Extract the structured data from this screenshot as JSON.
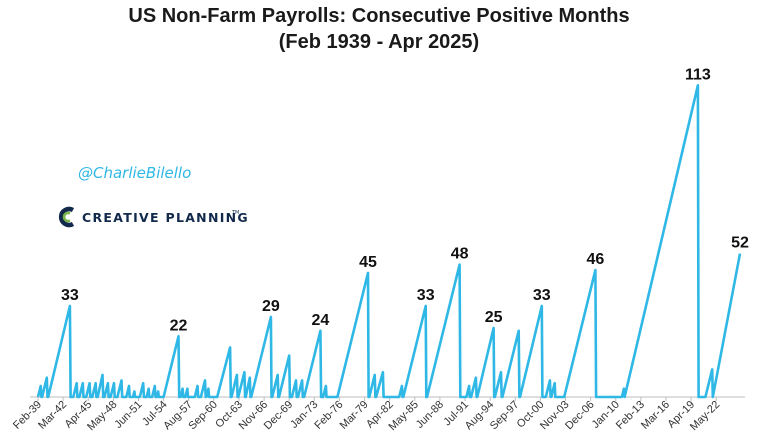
{
  "colors": {
    "series": "#2fb8e6",
    "handle": "#2fb8e6",
    "brand_navy": "#13294b",
    "brand_green": "#7ab648",
    "axis": "#bdbdbd",
    "title": "#1a1a1a"
  },
  "watermark": {
    "handle": "@CharlieBilello",
    "brand": "CREATIVE PLANNING",
    "brand_mark": "TM",
    "logo_icon": "creative-planning-c-logo-icon"
  },
  "chart_data": {
    "type": "line",
    "title": "US Non-Farm Payrolls: Consecutive Positive Months",
    "subtitle": "(Feb 1939 - Apr 2025)",
    "xlabel": "",
    "ylabel": "",
    "x_range": [
      "Feb-39",
      "Apr-25"
    ],
    "ylim": [
      0,
      120
    ],
    "grid": false,
    "legend": "none",
    "x_tick_labels": [
      "Feb-39",
      "Mar-42",
      "Apr-45",
      "May-48",
      "Jun-51",
      "Jul-54",
      "Aug-57",
      "Sep-60",
      "Oct-63",
      "Nov-66",
      "Dec-69",
      "Jan-73",
      "Feb-76",
      "Mar-79",
      "Apr-82",
      "May-85",
      "Jun-88",
      "Jul-91",
      "Aug-94",
      "Sep-97",
      "Oct-00",
      "Nov-03",
      "Dec-06",
      "Jan-10",
      "Feb-13",
      "Mar-16",
      "Apr-19",
      "May-22"
    ],
    "series": [
      {
        "values": [
          {
            "x": "Feb-39",
            "y": 0
          },
          {
            "x": "Jun-39",
            "y": 4
          },
          {
            "x": "Jul-39",
            "y": 0
          },
          {
            "x": "Aug-39",
            "y": 0
          },
          {
            "x": "Mar-40",
            "y": 7
          },
          {
            "x": "Apr-40",
            "y": 0
          },
          {
            "x": "May-40",
            "y": 0
          },
          {
            "x": "Jan-43",
            "y": 33
          },
          {
            "x": "Feb-43",
            "y": 0
          },
          {
            "x": "Jun-43",
            "y": 0
          },
          {
            "x": "Nov-43",
            "y": 5
          },
          {
            "x": "Dec-43",
            "y": 0
          },
          {
            "x": "Mar-44",
            "y": 0
          },
          {
            "x": "Aug-44",
            "y": 5
          },
          {
            "x": "Sep-44",
            "y": 0
          },
          {
            "x": "Jan-45",
            "y": 0
          },
          {
            "x": "Jun-45",
            "y": 5
          },
          {
            "x": "Jul-45",
            "y": 0
          },
          {
            "x": "Oct-45",
            "y": 0
          },
          {
            "x": "Mar-46",
            "y": 5
          },
          {
            "x": "Apr-46",
            "y": 0
          },
          {
            "x": "Jun-46",
            "y": 0
          },
          {
            "x": "Jan-47",
            "y": 8
          },
          {
            "x": "Feb-47",
            "y": 0
          },
          {
            "x": "Apr-47",
            "y": 0
          },
          {
            "x": "Sep-47",
            "y": 5
          },
          {
            "x": "Oct-47",
            "y": 0
          },
          {
            "x": "Jan-48",
            "y": 0
          },
          {
            "x": "Jun-48",
            "y": 5
          },
          {
            "x": "Jul-48",
            "y": 0
          },
          {
            "x": "Nov-48",
            "y": 0
          },
          {
            "x": "May-49",
            "y": 6
          },
          {
            "x": "Jun-49",
            "y": 0
          },
          {
            "x": "Dec-49",
            "y": 0
          },
          {
            "x": "Apr-50",
            "y": 4
          },
          {
            "x": "May-50",
            "y": 0
          },
          {
            "x": "Oct-50",
            "y": 0
          },
          {
            "x": "Dec-50",
            "y": 2
          },
          {
            "x": "Jan-51",
            "y": 0
          },
          {
            "x": "Aug-51",
            "y": 0
          },
          {
            "x": "Jan-52",
            "y": 5
          },
          {
            "x": "Feb-52",
            "y": 0
          },
          {
            "x": "Jun-52",
            "y": 0
          },
          {
            "x": "Sep-52",
            "y": 3
          },
          {
            "x": "Oct-52",
            "y": 0
          },
          {
            "x": "Feb-53",
            "y": 0
          },
          {
            "x": "Jun-53",
            "y": 4
          },
          {
            "x": "Jul-53",
            "y": 0
          },
          {
            "x": "Sep-53",
            "y": 0
          },
          {
            "x": "Nov-53",
            "y": 2
          },
          {
            "x": "Dec-53",
            "y": 0
          },
          {
            "x": "Jul-54",
            "y": 0
          },
          {
            "x": "May-56",
            "y": 22
          },
          {
            "x": "Jun-56",
            "y": 0
          },
          {
            "x": "Aug-56",
            "y": 0
          },
          {
            "x": "Nov-56",
            "y": 3
          },
          {
            "x": "Dec-56",
            "y": 0
          },
          {
            "x": "Mar-57",
            "y": 0
          },
          {
            "x": "Jun-57",
            "y": 3
          },
          {
            "x": "Jul-57",
            "y": 0
          },
          {
            "x": "May-58",
            "y": 0
          },
          {
            "x": "Sep-58",
            "y": 4
          },
          {
            "x": "Oct-58",
            "y": 0
          },
          {
            "x": "Feb-59",
            "y": 0
          },
          {
            "x": "Aug-59",
            "y": 6
          },
          {
            "x": "Sep-59",
            "y": 0
          },
          {
            "x": "Oct-59",
            "y": 0
          },
          {
            "x": "Jan-60",
            "y": 3
          },
          {
            "x": "Feb-60",
            "y": 0
          },
          {
            "x": "Feb-61",
            "y": 0
          },
          {
            "x": "Sep-62",
            "y": 18
          },
          {
            "x": "Oct-62",
            "y": 0
          },
          {
            "x": "Nov-62",
            "y": 0
          },
          {
            "x": "Jul-63",
            "y": 8
          },
          {
            "x": "Aug-63",
            "y": 0
          },
          {
            "x": "Sep-63",
            "y": 0
          },
          {
            "x": "Jun-64",
            "y": 9
          },
          {
            "x": "Jul-64",
            "y": 0
          },
          {
            "x": "Aug-64",
            "y": 0
          },
          {
            "x": "Feb-65",
            "y": 7
          },
          {
            "x": "Mar-65",
            "y": 0
          },
          {
            "x": "Apr-65",
            "y": 0
          },
          {
            "x": "Sep-67",
            "y": 29
          },
          {
            "x": "Oct-67",
            "y": 0
          },
          {
            "x": "Nov-67",
            "y": 0
          },
          {
            "x": "Jul-68",
            "y": 8
          },
          {
            "x": "Aug-68",
            "y": 0
          },
          {
            "x": "Sep-68",
            "y": 0
          },
          {
            "x": "Dec-69",
            "y": 15
          },
          {
            "x": "Jan-70",
            "y": 0
          },
          {
            "x": "Apr-70",
            "y": 0
          },
          {
            "x": "Oct-70",
            "y": 6
          },
          {
            "x": "Nov-70",
            "y": 0
          },
          {
            "x": "Jan-71",
            "y": 0
          },
          {
            "x": "Jul-71",
            "y": 6
          },
          {
            "x": "Aug-71",
            "y": 0
          },
          {
            "x": "Oct-71",
            "y": 0
          },
          {
            "x": "Oct-73",
            "y": 24
          },
          {
            "x": "Nov-73",
            "y": 0
          },
          {
            "x": "Feb-74",
            "y": 0
          },
          {
            "x": "Jun-74",
            "y": 4
          },
          {
            "x": "Jul-74",
            "y": 0
          },
          {
            "x": "Nov-75",
            "y": 0
          },
          {
            "x": "Aug-79",
            "y": 45
          },
          {
            "x": "Sep-79",
            "y": 0
          },
          {
            "x": "Oct-79",
            "y": 0
          },
          {
            "x": "Jun-80",
            "y": 8
          },
          {
            "x": "Jul-80",
            "y": 0
          },
          {
            "x": "Aug-80",
            "y": 0
          },
          {
            "x": "Jun-81",
            "y": 9
          },
          {
            "x": "Jul-81",
            "y": 0
          },
          {
            "x": "Jun-83",
            "y": 0
          },
          {
            "x": "Oct-83",
            "y": 4
          },
          {
            "x": "Nov-83",
            "y": 0
          },
          {
            "x": "Dec-83",
            "y": 0
          },
          {
            "x": "Sep-86",
            "y": 33
          },
          {
            "x": "Oct-86",
            "y": 0
          },
          {
            "x": "Nov-86",
            "y": 0
          },
          {
            "x": "Nov-90",
            "y": 48
          },
          {
            "x": "Dec-90",
            "y": 0
          },
          {
            "x": "Sep-91",
            "y": 0
          },
          {
            "x": "Jan-92",
            "y": 4
          },
          {
            "x": "Feb-92",
            "y": 0
          },
          {
            "x": "Apr-92",
            "y": 0
          },
          {
            "x": "Nov-92",
            "y": 7
          },
          {
            "x": "Dec-92",
            "y": 0
          },
          {
            "x": "Jan-93",
            "y": 0
          },
          {
            "x": "Jan-95",
            "y": 25
          },
          {
            "x": "Feb-95",
            "y": 0
          },
          {
            "x": "Mar-95",
            "y": 0
          },
          {
            "x": "Dec-95",
            "y": 9
          },
          {
            "x": "Jan-96",
            "y": 0
          },
          {
            "x": "Feb-96",
            "y": 0
          },
          {
            "x": "Feb-98",
            "y": 24
          },
          {
            "x": "Mar-98",
            "y": 0
          },
          {
            "x": "Apr-98",
            "y": 0
          },
          {
            "x": "Dec-00",
            "y": 33
          },
          {
            "x": "Jan-01",
            "y": 0
          },
          {
            "x": "Jun-01",
            "y": 0
          },
          {
            "x": "Dec-01",
            "y": 6
          },
          {
            "x": "Jan-02",
            "y": 0
          },
          {
            "x": "Feb-02",
            "y": 0
          },
          {
            "x": "Jul-02",
            "y": 5
          },
          {
            "x": "Aug-02",
            "y": 0
          },
          {
            "x": "Sep-03",
            "y": 0
          },
          {
            "x": "Jul-07",
            "y": 46
          },
          {
            "x": "Aug-07",
            "y": 0
          },
          {
            "x": "Oct-10",
            "y": 0
          },
          {
            "x": "Jan-11",
            "y": 3
          },
          {
            "x": "Feb-11",
            "y": 0
          },
          {
            "x": "Feb-11",
            "y": 0
          },
          {
            "x": "Feb-20",
            "y": 113
          },
          {
            "x": "Mar-20",
            "y": 0
          },
          {
            "x": "Jan-21",
            "y": 0
          },
          {
            "x": "Nov-21",
            "y": 10
          },
          {
            "x": "Dec-21",
            "y": 0
          },
          {
            "x": "Dec-21",
            "y": 0
          },
          {
            "x": "Apr-25",
            "y": 52
          }
        ]
      }
    ],
    "annotations": [
      {
        "label": "33",
        "x": "Jan-43",
        "y": 33
      },
      {
        "label": "22",
        "x": "May-56",
        "y": 22
      },
      {
        "label": "29",
        "x": "Sep-67",
        "y": 29
      },
      {
        "label": "24",
        "x": "Oct-73",
        "y": 24
      },
      {
        "label": "45",
        "x": "Aug-79",
        "y": 45
      },
      {
        "label": "33",
        "x": "Sep-86",
        "y": 33
      },
      {
        "label": "48",
        "x": "Nov-90",
        "y": 48
      },
      {
        "label": "25",
        "x": "Jan-95",
        "y": 25
      },
      {
        "label": "33",
        "x": "Dec-00",
        "y": 33
      },
      {
        "label": "46",
        "x": "Jul-07",
        "y": 46
      },
      {
        "label": "113",
        "x": "Feb-20",
        "y": 113
      },
      {
        "label": "52",
        "x": "Apr-25",
        "y": 52
      }
    ]
  }
}
